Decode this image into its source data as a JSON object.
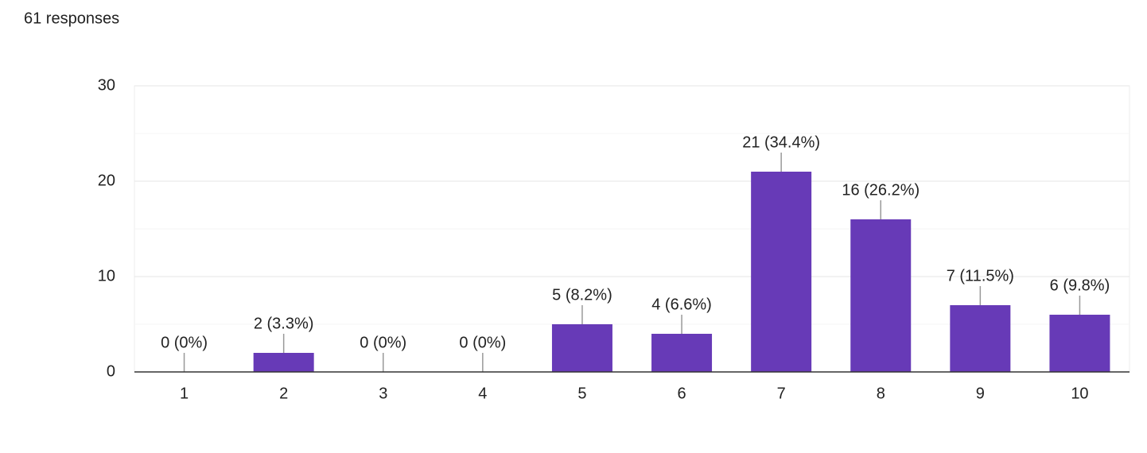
{
  "chart_data": {
    "type": "bar",
    "title": "61 responses",
    "categories": [
      "1",
      "2",
      "3",
      "4",
      "5",
      "6",
      "7",
      "8",
      "9",
      "10"
    ],
    "values": [
      0,
      2,
      0,
      0,
      5,
      4,
      21,
      16,
      7,
      6
    ],
    "value_labels": [
      "0 (0%)",
      "2 (3.3%)",
      "0 (0%)",
      "0 (0%)",
      "5 (8.2%)",
      "4 (6.6%)",
      "21 (34.4%)",
      "16 (26.2%)",
      "7 (11.5%)",
      "6 (9.8%)"
    ],
    "color": "#673ab7",
    "ylim": [
      0,
      30
    ],
    "yticks": [
      0,
      10,
      20,
      30
    ],
    "minor_gridlines": [
      5,
      15,
      25
    ],
    "grid": true
  }
}
